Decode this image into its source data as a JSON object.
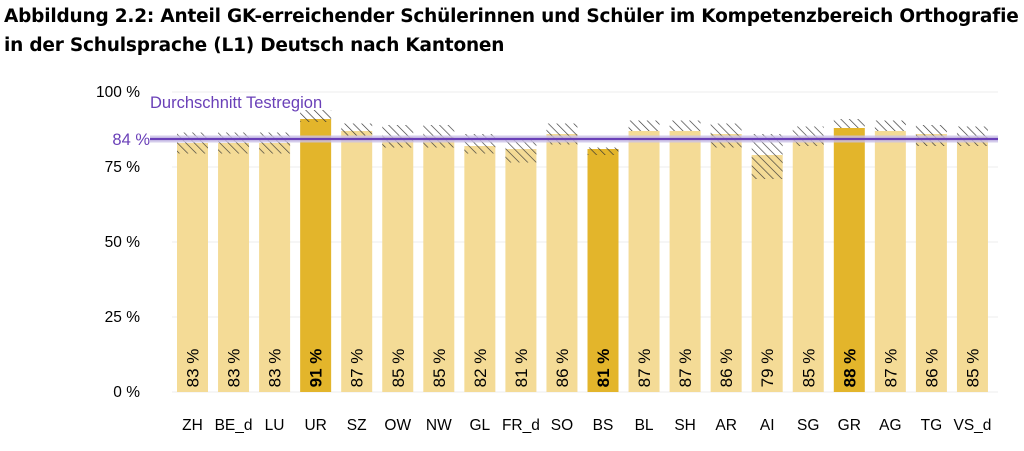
{
  "title": "Abbildung 2.2: Anteil GK-erreichender Schülerinnen und Schüler im Kompetenzbereich Orthografie in der Schulsprache (L1) Deutsch nach Kantonen",
  "chart_data": {
    "type": "bar",
    "title": "Abbildung 2.2: Anteil GK-erreichender Schülerinnen und Schüler im Kompetenzbereich Orthografie in der Schulsprache (L1) Deutsch nach Kantonen",
    "xlabel": "",
    "ylabel": "",
    "ylim": [
      0,
      100
    ],
    "yticks": [
      0,
      25,
      50,
      75,
      100
    ],
    "ytick_labels": [
      "0 %",
      "25 %",
      "50 %",
      "75 %",
      "100 %"
    ],
    "categories": [
      "ZH",
      "BE_d",
      "LU",
      "UR",
      "SZ",
      "OW",
      "NW",
      "GL",
      "FR_d",
      "SO",
      "BS",
      "BL",
      "SH",
      "AR",
      "AI",
      "SG",
      "GR",
      "AG",
      "TG",
      "VS_d"
    ],
    "values": [
      83,
      83,
      83,
      91,
      87,
      85,
      85,
      82,
      81,
      86,
      81,
      87,
      87,
      86,
      79,
      85,
      88,
      87,
      86,
      85
    ],
    "value_labels": [
      "83 %",
      "83 %",
      "83 %",
      "91 %",
      "87 %",
      "85 %",
      "85 %",
      "82 %",
      "81 %",
      "86 %",
      "81 %",
      "87 %",
      "87 %",
      "86 %",
      "79 %",
      "85 %",
      "88 %",
      "87 %",
      "86 %",
      "85 %"
    ],
    "ci_low": [
      79.5,
      79.5,
      79.5,
      90,
      85.5,
      81.5,
      81.5,
      79.5,
      76.5,
      82.5,
      79,
      87,
      87,
      81.5,
      71,
      82,
      88,
      87,
      82,
      82
    ],
    "ci_high": [
      86.5,
      86.5,
      86.5,
      94,
      89.5,
      89,
      89,
      86,
      84.5,
      89.5,
      81.5,
      90.5,
      90.5,
      89.5,
      86,
      88.5,
      91,
      90.5,
      89,
      88.5
    ],
    "highlighted": [
      "UR",
      "BS",
      "GR"
    ],
    "average": {
      "label": "Durchschnitt Testregion",
      "value": 84,
      "value_label": "84 %"
    },
    "grid": true,
    "colors": {
      "bar": "#f4db96",
      "bar_highlight": "#e3b52b",
      "average_line": "#6a40b8",
      "average_band": "#c9bfe6",
      "hatch": "#333333",
      "grid": "#ececec"
    }
  }
}
